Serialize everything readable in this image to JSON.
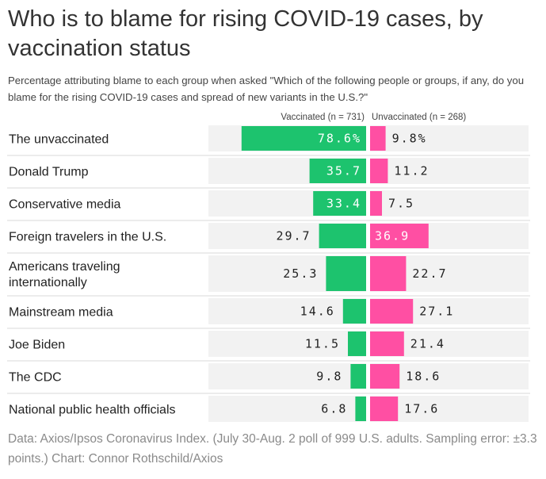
{
  "title": "Who is to blame for rising COVID-19 cases, by vaccination status",
  "subtitle": "Percentage attributing blame to each group when asked \"Which of the following people or groups, if any, do you blame for the rising COVID-19 cases and spread of new variants in the U.S.?\"",
  "footer": "Data: Axios/Ipsos Coronavirus Index. (July 30-Aug. 2 poll of 999 U.S. adults. Sampling error: ±3.3 points.) Chart: Connor Rothschild/Axios",
  "colors": {
    "vaccinated": "#1dc36e",
    "unvaccinated": "#ff4fa3",
    "track": "#f2f2f2",
    "rule": "#d9d9d9"
  },
  "chart_data": {
    "type": "bar",
    "title": "Who is to blame for rising COVID-19 cases, by vaccination status",
    "subtitle": "Percentage attributing blame to each group when asked \"Which of the following people or groups, if any, do you blame for the rising COVID-19 cases and spread of new variants in the U.S.?\"",
    "categories": [
      "The unvaccinated",
      "Donald Trump",
      "Conservative media",
      "Foreign travelers in the U.S.",
      "Americans traveling internationally",
      "Mainstream media",
      "Joe Biden",
      "The CDC",
      "National public health officials"
    ],
    "series": [
      {
        "name": "Vaccinated (n = 731)",
        "values": [
          78.6,
          35.7,
          33.4,
          29.7,
          25.3,
          14.6,
          11.5,
          9.8,
          6.8
        ]
      },
      {
        "name": "Unvaccinated (n = 268)",
        "values": [
          9.8,
          11.2,
          7.5,
          36.9,
          22.7,
          27.1,
          21.4,
          18.6,
          17.6
        ]
      }
    ],
    "value_labels": {
      "vaccinated": [
        "78.6%",
        "35.7",
        "33.4",
        "29.7",
        "25.3",
        "14.6",
        "11.5",
        "9.8",
        "6.8"
      ],
      "unvaccinated": [
        "9.8%",
        "11.2",
        "7.5",
        "36.9",
        "22.7",
        "27.1",
        "21.4",
        "18.6",
        "17.6"
      ]
    },
    "xlim": [
      0,
      100
    ],
    "legend": "top-center",
    "grid": false
  }
}
